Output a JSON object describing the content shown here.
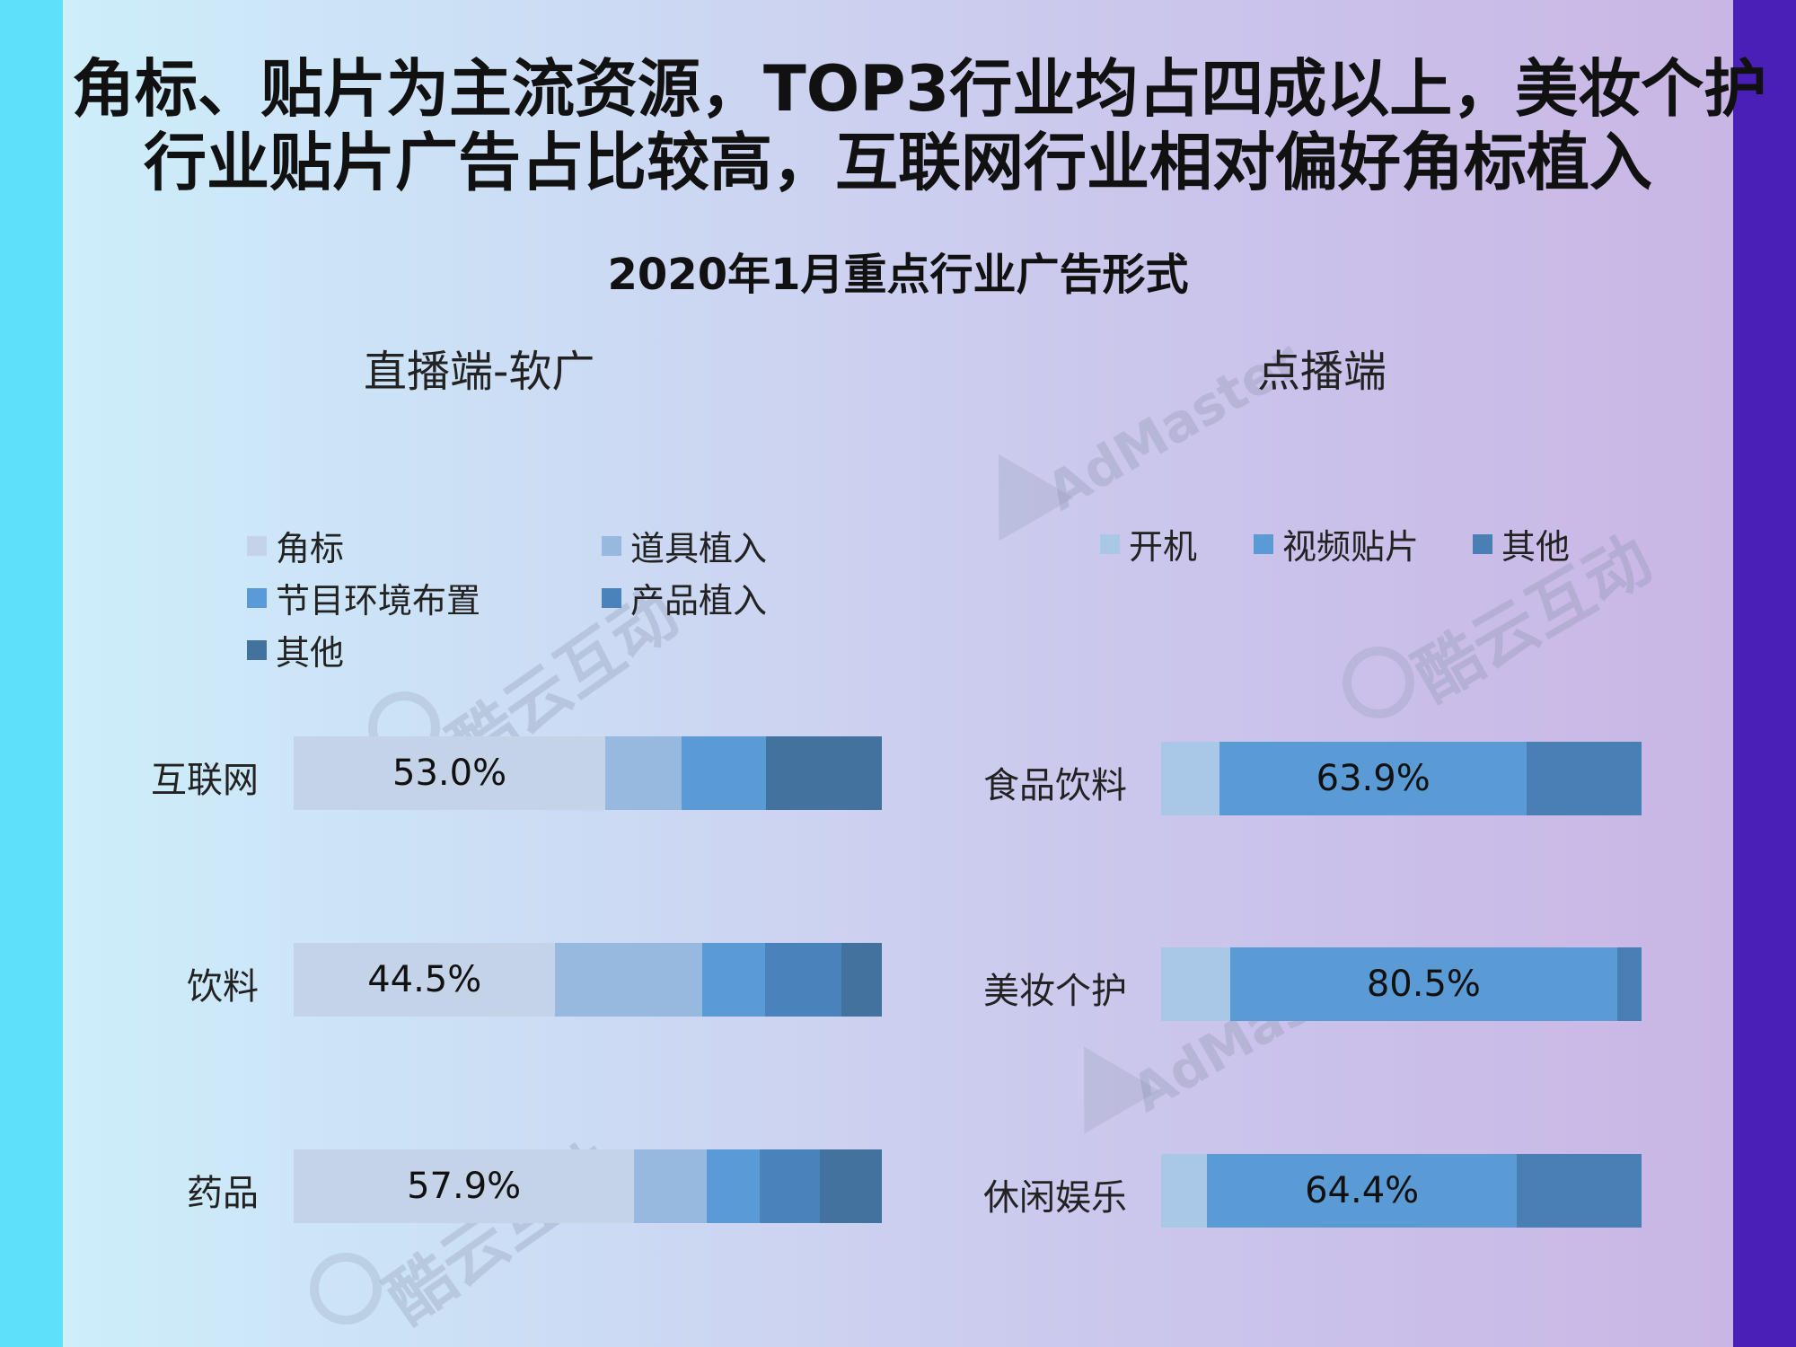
{
  "headline": {
    "line1": "角标、贴片为主流资源，TOP3行业均占四成以上，美妆个护",
    "line2": "行业贴片广告占比较高，互联网行业相对偏好角标植入"
  },
  "watermarks": {
    "kuyun": "酷云互动",
    "admaster": "AdMaster"
  },
  "chart_data": [
    {
      "type": "bar",
      "orientation": "horizontal",
      "stacked": true,
      "percent_stacked": true,
      "title": "2020年1月重点行业广告形式",
      "subtitle": "直播端-软广",
      "categories": [
        "互联网",
        "饮料",
        "药品"
      ],
      "series": [
        {
          "name": "角标",
          "color": "#c5d3e8",
          "values": [
            53.0,
            44.5,
            57.9
          ]
        },
        {
          "name": "道具植入",
          "color": "#97b9e0",
          "values": [
            13.0,
            25.0,
            12.4
          ]
        },
        {
          "name": "节目环境布置",
          "color": "#5b9bd5",
          "values": [
            14.3,
            10.7,
            8.9
          ]
        },
        {
          "name": "产品植入",
          "color": "#4a83bc",
          "values": [
            0.0,
            12.9,
            10.2
          ]
        },
        {
          "name": "其他",
          "color": "#44729f",
          "values": [
            19.7,
            6.9,
            10.6
          ]
        }
      ],
      "data_labels": {
        "互联网": "53.0%",
        "饮料": "44.5%",
        "药品": "57.9%"
      },
      "legend_position": "top",
      "xlim": [
        0,
        100
      ]
    },
    {
      "type": "bar",
      "orientation": "horizontal",
      "stacked": true,
      "percent_stacked": true,
      "title": "2020年1月重点行业广告形式",
      "subtitle": "点播端",
      "categories": [
        "食品饮料",
        "美妆个护",
        "休闲娱乐"
      ],
      "series": [
        {
          "name": "开机",
          "color": "#a9c7e6",
          "values": [
            12.2,
            14.4,
            9.6
          ]
        },
        {
          "name": "视频贴片",
          "color": "#5b9bd5",
          "values": [
            63.9,
            80.5,
            64.4
          ]
        },
        {
          "name": "其他",
          "color": "#4a7fb5",
          "values": [
            23.9,
            5.1,
            26.0
          ]
        }
      ],
      "data_labels": {
        "食品饮料": "63.9%",
        "美妆个护": "80.5%",
        "休闲娱乐": "64.4%"
      },
      "legend_position": "top",
      "xlim": [
        0,
        100
      ]
    }
  ]
}
